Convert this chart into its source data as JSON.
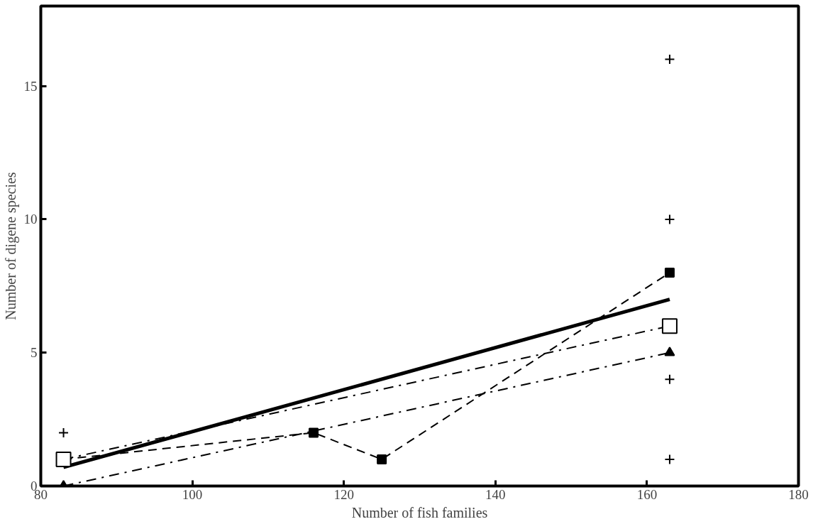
{
  "chart_data": {
    "type": "line",
    "xlabel": "Number of fish families",
    "ylabel": "Number of digene species",
    "xlim": [
      80,
      180
    ],
    "ylim": [
      0,
      18
    ],
    "xticks": [
      80,
      100,
      120,
      140,
      160,
      180
    ],
    "yticks": [
      0,
      5,
      10,
      15
    ],
    "grid": false,
    "series": [
      {
        "color": "#000000",
        "x": [
          83,
          163
        ],
        "values": [
          0.7,
          7
        ],
        "marker": "none",
        "line_style": "solid"
      },
      {
        "color": "#000000",
        "x": [
          83,
          116,
          125,
          163
        ],
        "values": [
          1,
          2,
          1,
          8
        ],
        "marker": "square",
        "line_style": "dashed"
      },
      {
        "color": "#000000",
        "x": [
          83,
          163
        ],
        "values": [
          1,
          6
        ],
        "marker": "square_open",
        "line_style": "dashdot"
      },
      {
        "color": "#000000",
        "x": [
          83,
          163
        ],
        "values": [
          0,
          5
        ],
        "marker": "triangle",
        "line_style": "dashdot"
      },
      {
        "type": "scatter",
        "color": "#000000",
        "x": [
          83,
          163,
          163,
          163,
          163
        ],
        "values": [
          2,
          16,
          10,
          4,
          1
        ],
        "marker": "cross"
      }
    ]
  }
}
